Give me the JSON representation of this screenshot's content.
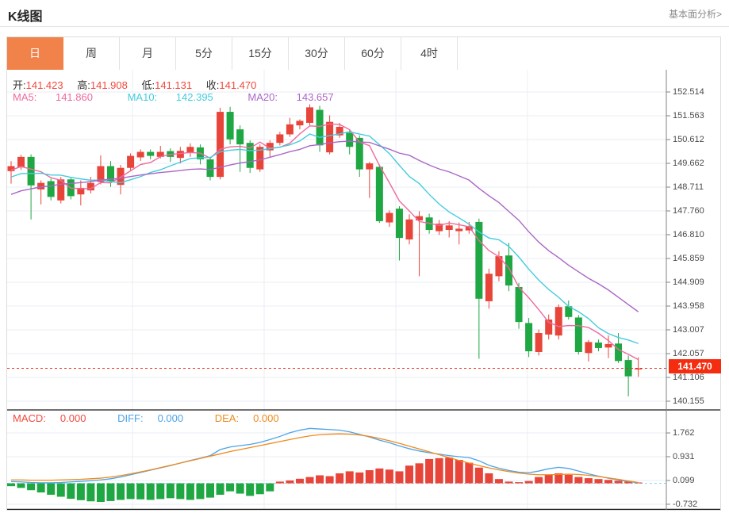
{
  "header": {
    "title": "K线图",
    "link": "基本面分析>"
  },
  "tabs": {
    "items": [
      "日",
      "周",
      "月",
      "5分",
      "15分",
      "30分",
      "60分",
      "4时"
    ],
    "selected_index": 0
  },
  "ohlc": {
    "open_label": "开:",
    "open": "141.423",
    "high_label": "高:",
    "high": "141.908",
    "low_label": "低:",
    "low": "141.131",
    "close_label": "收:",
    "close": "141.470"
  },
  "ma_header": {
    "ma5_label": "MA5:",
    "ma5": "141.860",
    "ma10_label": "MA10:",
    "ma10": "142.395",
    "ma20_label": "MA20:",
    "ma20": "143.657"
  },
  "macd_header": {
    "macd_label": "MACD:",
    "macd": "0.000",
    "diff_label": "DIFF:",
    "diff": "0.000",
    "dea_label": "DEA:",
    "dea": "0.000"
  },
  "price_tag": "141.470",
  "colors": {
    "up_red": "#e8453a",
    "down_green": "#1fa743",
    "ma5_pink": "#ee6a9d",
    "ma10_cyan": "#43ccdf",
    "ma20_purple": "#ab66c6",
    "diff_blue": "#4da3e8",
    "dea_orange": "#ef8b1d",
    "value_red": "#f04a3e",
    "tab_orange": "#f0824a",
    "grid": "#e8edf4",
    "axis": "#808080",
    "tick_text": "#4a4a4a",
    "price_line_red": "#f03022",
    "price_tag_bg": "#f42d10",
    "zero_dash_cyan": "#8fd4e6",
    "separator": "#1a1a1a"
  },
  "chart_data": {
    "type": "candlestick+macd",
    "main": {
      "y_axis_ticks": [
        "152.514",
        "151.563",
        "150.612",
        "149.662",
        "148.711",
        "147.760",
        "146.810",
        "145.859",
        "144.909",
        "143.958",
        "143.007",
        "142.057",
        "141.106",
        "140.155"
      ],
      "y_max": 152.514,
      "y_min": 140.155,
      "last_price": 141.47,
      "ma_periods": [
        5,
        10,
        20
      ],
      "ma_seed_closes_estimated": [
        146.9,
        147.05,
        147.2,
        147.35,
        147.5,
        147.65,
        147.8,
        147.95,
        148.1,
        148.25,
        148.4,
        148.55,
        148.7,
        148.85,
        149.0,
        149.1,
        149.2,
        149.3,
        149.4,
        149.5
      ],
      "candles_ohlc": [
        [
          149.35,
          149.75,
          148.85,
          149.55
        ],
        [
          149.5,
          150.0,
          149.4,
          149.92
        ],
        [
          149.92,
          150.02,
          147.42,
          148.78
        ],
        [
          148.62,
          148.98,
          148.02,
          148.88
        ],
        [
          148.95,
          149.05,
          148.18,
          148.32
        ],
        [
          148.18,
          149.12,
          148.06,
          149.02
        ],
        [
          149.02,
          149.12,
          148.22,
          148.35
        ],
        [
          148.42,
          148.98,
          147.98,
          148.68
        ],
        [
          148.58,
          149.12,
          148.46,
          148.88
        ],
        [
          148.92,
          149.98,
          148.82,
          149.55
        ],
        [
          149.55,
          149.75,
          148.72,
          148.95
        ],
        [
          148.8,
          149.6,
          148.42,
          149.48
        ],
        [
          149.48,
          150.06,
          149.38,
          149.96
        ],
        [
          149.9,
          150.22,
          149.76,
          150.12
        ],
        [
          150.12,
          150.22,
          149.82,
          149.96
        ],
        [
          149.92,
          150.36,
          149.86,
          150.12
        ],
        [
          150.15,
          150.26,
          149.72,
          149.92
        ],
        [
          149.88,
          150.32,
          149.66,
          150.16
        ],
        [
          150.08,
          150.46,
          149.92,
          150.32
        ],
        [
          150.3,
          150.42,
          149.62,
          149.82
        ],
        [
          149.82,
          149.92,
          148.98,
          149.12
        ],
        [
          149.12,
          151.88,
          149.02,
          151.72
        ],
        [
          151.72,
          151.92,
          150.42,
          150.62
        ],
        [
          151.02,
          151.18,
          149.32,
          150.42
        ],
        [
          150.48,
          150.58,
          149.28,
          149.48
        ],
        [
          149.42,
          150.42,
          149.32,
          150.32
        ],
        [
          150.18,
          150.58,
          149.92,
          150.48
        ],
        [
          150.48,
          150.92,
          150.38,
          150.82
        ],
        [
          150.82,
          151.48,
          150.72,
          151.22
        ],
        [
          151.18,
          151.42,
          151.02,
          151.36
        ],
        [
          151.28,
          152.02,
          151.18,
          151.9
        ],
        [
          151.8,
          151.96,
          150.12,
          150.38
        ],
        [
          150.1,
          151.58,
          150.02,
          151.32
        ],
        [
          150.78,
          151.28,
          150.68,
          151.12
        ],
        [
          150.88,
          150.98,
          150.02,
          150.32
        ],
        [
          150.68,
          150.78,
          149.12,
          149.42
        ],
        [
          149.42,
          149.72,
          148.28,
          149.66
        ],
        [
          149.52,
          149.62,
          147.28,
          147.35
        ],
        [
          147.3,
          147.78,
          147.12,
          147.68
        ],
        [
          147.85,
          147.95,
          145.78,
          146.68
        ],
        [
          146.62,
          147.62,
          146.42,
          147.42
        ],
        [
          147.38,
          147.75,
          145.15,
          147.55
        ],
        [
          147.5,
          147.65,
          146.85,
          147.0
        ],
        [
          146.95,
          147.4,
          146.8,
          147.25
        ],
        [
          147.0,
          147.35,
          146.7,
          147.18
        ],
        [
          146.95,
          147.3,
          146.42,
          147.05
        ],
        [
          146.98,
          147.32,
          146.85,
          147.15
        ],
        [
          147.32,
          147.45,
          141.85,
          144.25
        ],
        [
          144.15,
          145.45,
          143.85,
          145.25
        ],
        [
          145.15,
          146.15,
          144.95,
          145.95
        ],
        [
          145.98,
          146.48,
          144.55,
          144.78
        ],
        [
          144.72,
          144.88,
          143.05,
          143.32
        ],
        [
          143.28,
          143.48,
          141.92,
          142.15
        ],
        [
          142.12,
          143.02,
          141.98,
          142.88
        ],
        [
          142.82,
          143.62,
          142.62,
          143.42
        ],
        [
          142.78,
          144.02,
          142.62,
          143.92
        ],
        [
          143.95,
          144.18,
          143.42,
          143.52
        ],
        [
          143.5,
          143.6,
          142.02,
          142.12
        ],
        [
          142.08,
          142.6,
          141.74,
          142.52
        ],
        [
          142.5,
          142.62,
          142.15,
          142.28
        ],
        [
          142.3,
          142.78,
          141.88,
          142.44
        ],
        [
          142.46,
          142.88,
          141.68,
          141.76
        ],
        [
          141.8,
          141.98,
          140.35,
          141.15
        ],
        [
          141.423,
          141.908,
          141.131,
          141.47
        ]
      ]
    },
    "macd": {
      "y_axis_ticks": [
        "1.762",
        "0.931",
        "0.099",
        "-0.732"
      ],
      "diff": [
        0.06,
        0.05,
        0.03,
        0.02,
        0.02,
        0.03,
        0.05,
        0.07,
        0.09,
        0.12,
        0.16,
        0.22,
        0.3,
        0.38,
        0.46,
        0.54,
        0.62,
        0.71,
        0.8,
        0.88,
        0.97,
        1.18,
        1.27,
        1.32,
        1.36,
        1.43,
        1.53,
        1.64,
        1.77,
        1.86,
        1.92,
        1.9,
        1.88,
        1.86,
        1.8,
        1.71,
        1.62,
        1.51,
        1.42,
        1.31,
        1.21,
        1.13,
        1.07,
        1.02,
        0.97,
        0.93,
        0.9,
        0.79,
        0.63,
        0.53,
        0.45,
        0.39,
        0.37,
        0.43,
        0.51,
        0.56,
        0.52,
        0.43,
        0.33,
        0.25,
        0.18,
        0.12,
        0.06,
        0.02
      ],
      "dea": [
        0.12,
        0.12,
        0.11,
        0.11,
        0.11,
        0.12,
        0.13,
        0.14,
        0.16,
        0.18,
        0.22,
        0.27,
        0.33,
        0.4,
        0.47,
        0.55,
        0.63,
        0.71,
        0.79,
        0.87,
        0.95,
        1.03,
        1.11,
        1.18,
        1.25,
        1.32,
        1.39,
        1.46,
        1.53,
        1.6,
        1.66,
        1.7,
        1.72,
        1.73,
        1.72,
        1.69,
        1.64,
        1.57,
        1.49,
        1.4,
        1.3,
        1.2,
        1.1,
        1.0,
        0.9,
        0.8,
        0.71,
        0.62,
        0.54,
        0.47,
        0.41,
        0.36,
        0.32,
        0.3,
        0.3,
        0.31,
        0.32,
        0.31,
        0.28,
        0.24,
        0.19,
        0.14,
        0.08,
        0.03
      ],
      "hist": [
        -0.1,
        -0.16,
        -0.24,
        -0.32,
        -0.4,
        -0.47,
        -0.54,
        -0.59,
        -0.63,
        -0.65,
        -0.62,
        -0.58,
        -0.55,
        -0.56,
        -0.58,
        -0.55,
        -0.52,
        -0.55,
        -0.58,
        -0.55,
        -0.5,
        -0.4,
        -0.28,
        -0.36,
        -0.44,
        -0.38,
        -0.28,
        0.06,
        0.1,
        0.16,
        0.22,
        0.28,
        0.25,
        0.35,
        0.42,
        0.38,
        0.46,
        0.52,
        0.48,
        0.42,
        0.62,
        0.7,
        0.85,
        0.88,
        0.9,
        0.82,
        0.72,
        0.55,
        0.35,
        0.15,
        0.06,
        0.04,
        0.08,
        0.22,
        0.3,
        0.35,
        0.3,
        0.22,
        0.18,
        0.15,
        0.12,
        0.09,
        0.06,
        0.03
      ]
    }
  }
}
